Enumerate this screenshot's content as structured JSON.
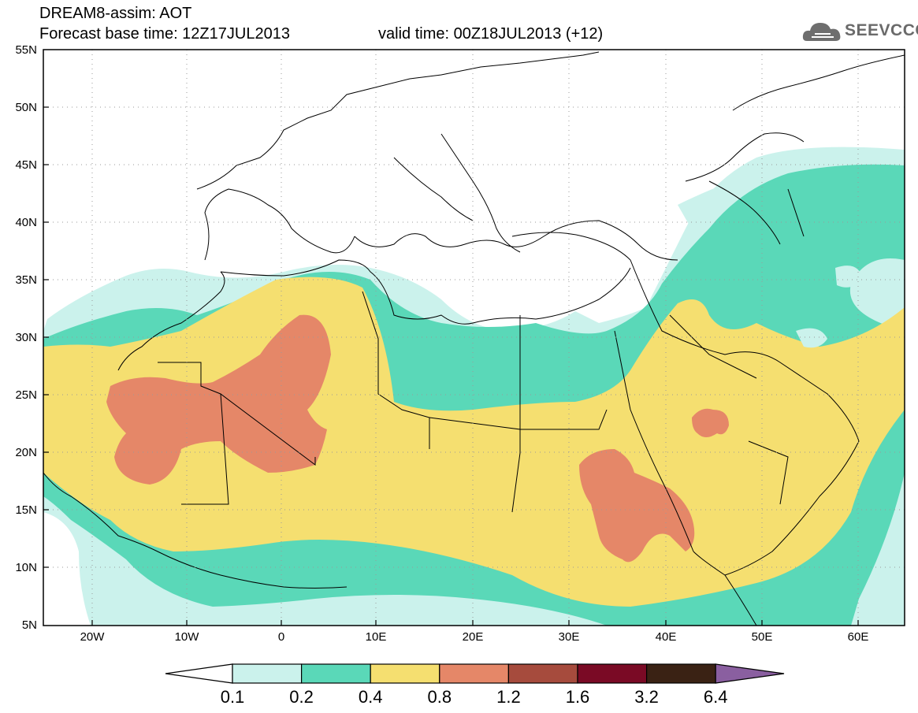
{
  "header": {
    "title_line1": "DREAM8-assim: AOT",
    "title_line2": "Forecast base time: 12Z17JUL2013",
    "valid_time": "valid time: 00Z18JUL2013 (+12)",
    "logo_text": "SEEVCCC"
  },
  "axes": {
    "lon_labels": [
      "20W",
      "10W",
      "0",
      "10E",
      "20E",
      "30E",
      "40E",
      "50E",
      "60E"
    ],
    "lat_labels": [
      "55N",
      "50N",
      "45N",
      "40N",
      "35N",
      "30N",
      "25N",
      "20N",
      "15N",
      "10N",
      "5N"
    ]
  },
  "legend": {
    "levels": [
      "0.1",
      "0.2",
      "0.4",
      "0.8",
      "1.2",
      "1.6",
      "3.2",
      "6.4"
    ],
    "colors": [
      "#ffffff",
      "#cbf2ec",
      "#5ad8b8",
      "#f5df70",
      "#e58768",
      "#a64b3d",
      "#7a0a25",
      "#3a2214",
      "#8a5fa0"
    ]
  },
  "colors": {
    "aot_0_1": "#cbf2ec",
    "aot_0_2": "#5ad8b8",
    "aot_0_4": "#f5df70",
    "aot_0_8": "#e58768",
    "aot_1_2": "#a64b3d"
  }
}
